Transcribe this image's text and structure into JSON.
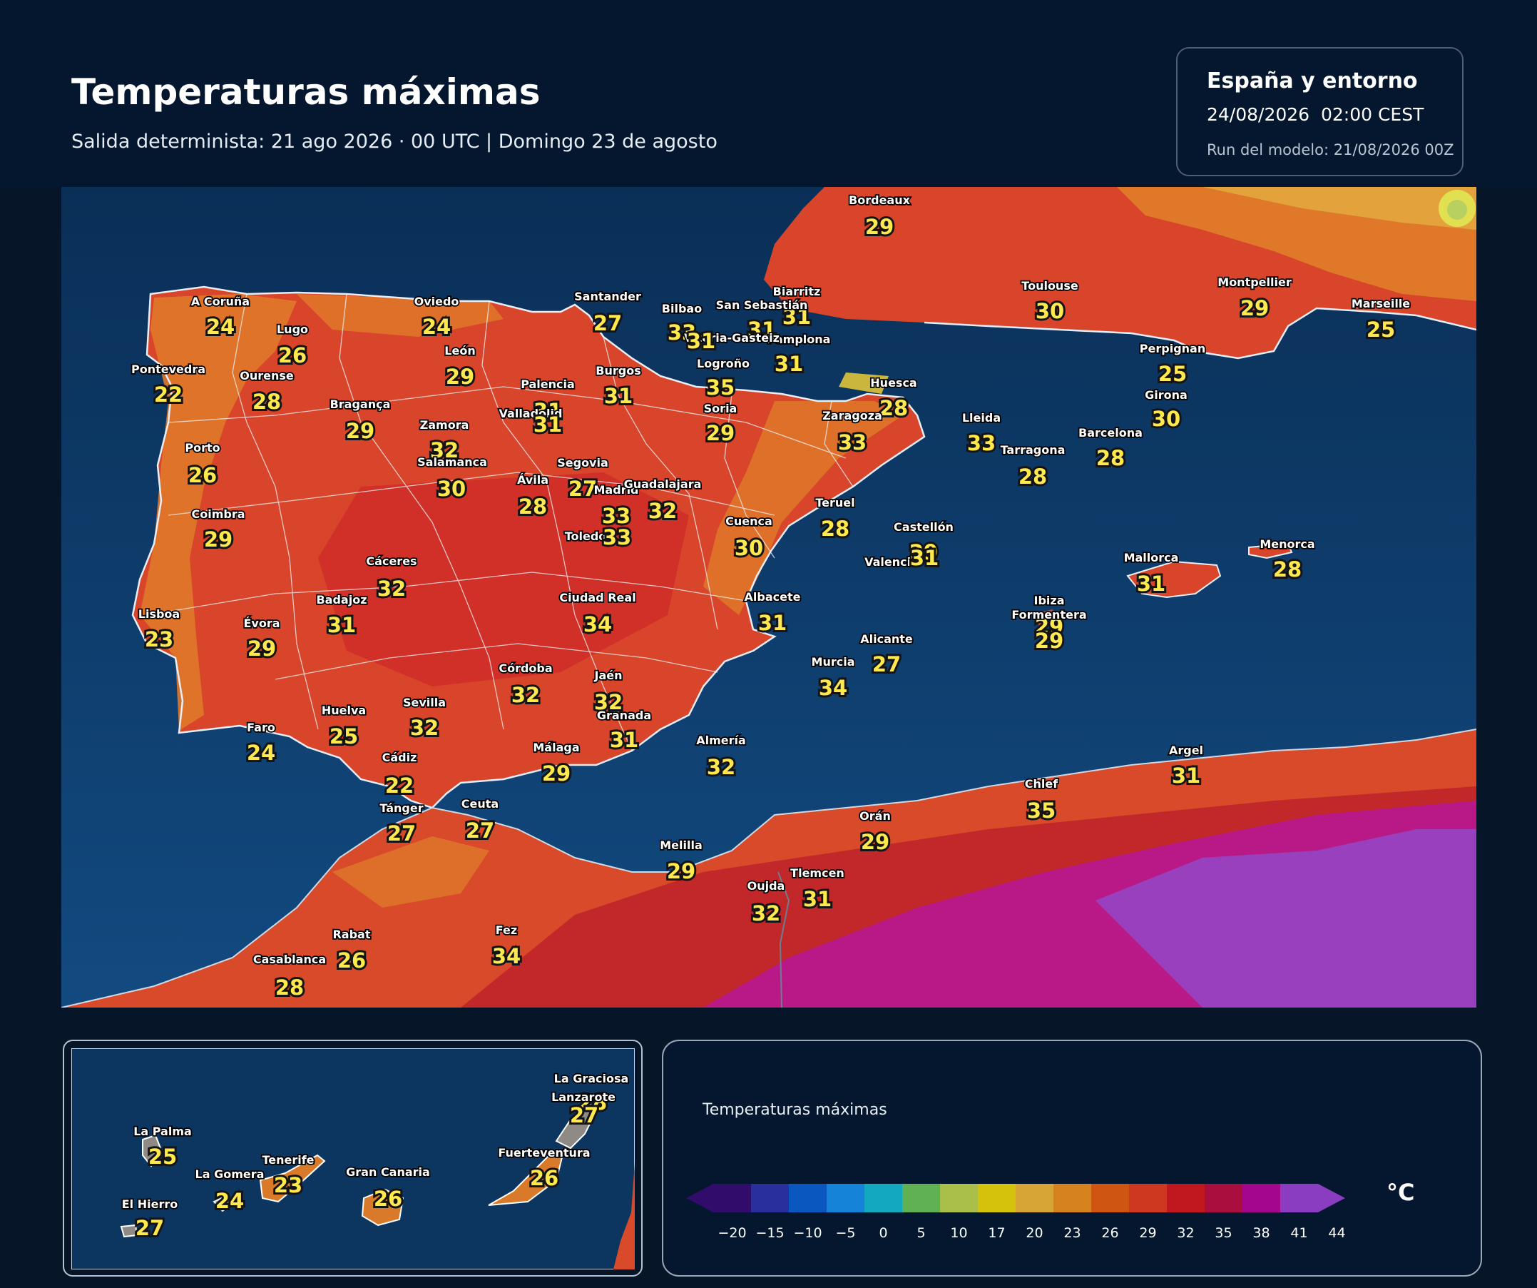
{
  "header": {
    "title": "Temperaturas máximas",
    "subtitle": "Salida determinista: 21 ago 2026 · 00 UTC  |  Domingo 23 de agosto"
  },
  "info_box": {
    "region": "España y entorno",
    "valid": "24/08/2026  02:00 CEST",
    "run": "Run del modelo: 21/08/2026 00Z"
  },
  "map": {
    "stations": [
      {
        "name": "Bordeaux",
        "value": "29"
      },
      {
        "name": "Toulouse",
        "value": "30"
      },
      {
        "name": "Montpellier",
        "value": "29"
      },
      {
        "name": "Marseille",
        "value": "25"
      },
      {
        "name": "Perpignan",
        "value": "25"
      },
      {
        "name": "Girona",
        "value": "30"
      },
      {
        "name": "Biarritz",
        "value": "31"
      },
      {
        "name": "San Sebastián",
        "value": "31"
      },
      {
        "name": "Pamplona",
        "value": "31"
      },
      {
        "name": "Bilbao",
        "value": "33"
      },
      {
        "name": "Vitoria-Gasteiz",
        "value": "31"
      },
      {
        "name": "Logroño",
        "value": "35"
      },
      {
        "name": "Santander",
        "value": "27"
      },
      {
        "name": "Oviedo",
        "value": "24"
      },
      {
        "name": "A Coruña",
        "value": "24"
      },
      {
        "name": "Lugo",
        "value": "26"
      },
      {
        "name": "Pontevedra",
        "value": "22"
      },
      {
        "name": "Ourense",
        "value": "28"
      },
      {
        "name": "León",
        "value": "29"
      },
      {
        "name": "Burgos",
        "value": "31"
      },
      {
        "name": "Palencia",
        "value": "31"
      },
      {
        "name": "Valladolid",
        "value": "31"
      },
      {
        "name": "Bragança",
        "value": "29"
      },
      {
        "name": "Zamora",
        "value": "32"
      },
      {
        "name": "Soria",
        "value": "29"
      },
      {
        "name": "Huesca",
        "value": "28"
      },
      {
        "name": "Zaragoza",
        "value": "33"
      },
      {
        "name": "Lleida",
        "value": "33"
      },
      {
        "name": "Tarragona",
        "value": "28"
      },
      {
        "name": "Barcelona",
        "value": "28"
      },
      {
        "name": "Porto",
        "value": "26"
      },
      {
        "name": "Salamanca",
        "value": "30"
      },
      {
        "name": "Segovia",
        "value": "27"
      },
      {
        "name": "Ávila",
        "value": "28"
      },
      {
        "name": "Madrid",
        "value": "33"
      },
      {
        "name": "Guadalajara",
        "value": "32"
      },
      {
        "name": "Teruel",
        "value": "28"
      },
      {
        "name": "Coimbra",
        "value": "29"
      },
      {
        "name": "Toledo",
        "value": "33"
      },
      {
        "name": "Cuenca",
        "value": "30"
      },
      {
        "name": "Castellón",
        "value": "29"
      },
      {
        "name": "Valencia",
        "value": "31"
      },
      {
        "name": "Cáceres",
        "value": "32"
      },
      {
        "name": "Badajoz",
        "value": "31"
      },
      {
        "name": "Ciudad Real",
        "value": "34"
      },
      {
        "name": "Albacete",
        "value": "31"
      },
      {
        "name": "Lisboa",
        "value": "23"
      },
      {
        "name": "Évora",
        "value": "29"
      },
      {
        "name": "Alicante",
        "value": "27"
      },
      {
        "name": "Murcia",
        "value": "34"
      },
      {
        "name": "Córdoba",
        "value": "32"
      },
      {
        "name": "Jaén",
        "value": "32"
      },
      {
        "name": "Granada",
        "value": "31"
      },
      {
        "name": "Huelva",
        "value": "25"
      },
      {
        "name": "Sevilla",
        "value": "32"
      },
      {
        "name": "Faro",
        "value": "24"
      },
      {
        "name": "Málaga",
        "value": "29"
      },
      {
        "name": "Almería",
        "value": "32"
      },
      {
        "name": "Cádiz",
        "value": "22"
      },
      {
        "name": "Tánger",
        "value": "27"
      },
      {
        "name": "Ceuta",
        "value": "27"
      },
      {
        "name": "Mallorca",
        "value": "31"
      },
      {
        "name": "Menorca",
        "value": "28"
      },
      {
        "name": "Ibiza",
        "value": "29"
      },
      {
        "name": "Formentera",
        "value": "29"
      },
      {
        "name": "Argel",
        "value": "31"
      },
      {
        "name": "Chlef",
        "value": "35"
      },
      {
        "name": "Orán",
        "value": "29"
      },
      {
        "name": "Melilla",
        "value": "29"
      },
      {
        "name": "Oujda",
        "value": "32"
      },
      {
        "name": "Tlemcen",
        "value": "31"
      },
      {
        "name": "Rabat",
        "value": "26"
      },
      {
        "name": "Fez",
        "value": "34"
      },
      {
        "name": "Casablanca",
        "value": "28"
      }
    ]
  },
  "inset": {
    "stations": [
      {
        "name": "La Graciosa",
        "value": "28"
      },
      {
        "name": "Lanzarote",
        "value": "27"
      },
      {
        "name": "Fuerteventura",
        "value": "26"
      },
      {
        "name": "La Palma",
        "value": "25"
      },
      {
        "name": "Tenerife",
        "value": "23"
      },
      {
        "name": "La Gomera",
        "value": "24"
      },
      {
        "name": "Gran Canaria",
        "value": "26"
      },
      {
        "name": "El Hierro",
        "value": "27"
      }
    ]
  },
  "legend": {
    "title": "Temperaturas máximas",
    "unit": "°C",
    "ticks": [
      "−20",
      "−15",
      "−10",
      "−5",
      "0",
      "5",
      "10",
      "17",
      "20",
      "23",
      "26",
      "29",
      "32",
      "35",
      "38",
      "41",
      "44"
    ],
    "colors": [
      "#320c6b",
      "#29309e",
      "#0a58bf",
      "#1583d8",
      "#14a7c0",
      "#5fb153",
      "#a9bf4a",
      "#d4c20d",
      "#d7a536",
      "#d6821f",
      "#cf5513",
      "#cf3820",
      "#c0181e",
      "#a90e3e",
      "#a3078b",
      "#8a3dc0"
    ]
  },
  "colors": {
    "background": "#061528",
    "sea": "#0d3a66",
    "label_value": "#ffe94d"
  }
}
